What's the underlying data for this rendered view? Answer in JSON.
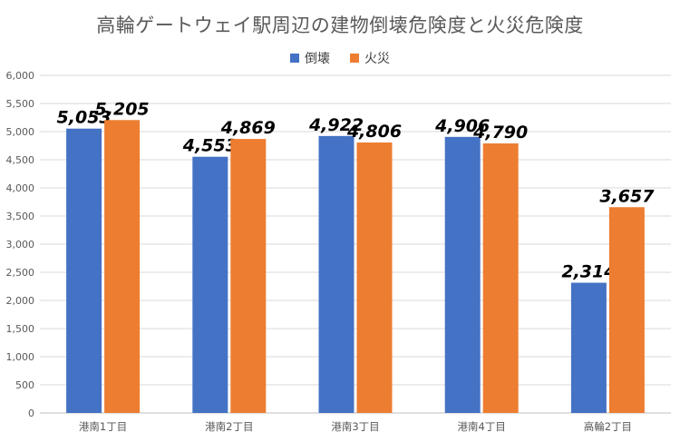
{
  "chart_data": {
    "type": "bar",
    "title": "高輪ゲートウェイ駅周辺の建物倒壊危険度と火災危険度",
    "categories": [
      "港南1丁目",
      "港南2丁目",
      "港南3丁目",
      "港南4丁目",
      "高輪2丁目"
    ],
    "series": [
      {
        "name": "倒壊",
        "values": [
          5053,
          4553,
          4922,
          4906,
          2314
        ],
        "color": "#4472C4"
      },
      {
        "name": "火災",
        "values": [
          5205,
          4869,
          4806,
          4790,
          3657
        ],
        "color": "#ED7D31"
      }
    ],
    "ylim": [
      0,
      6000
    ],
    "ytick_step": 500,
    "yticks": [
      "0",
      "500",
      "1,000",
      "1,500",
      "2,000",
      "2,500",
      "3,000",
      "3,500",
      "4,000",
      "4,500",
      "5,000",
      "5,500",
      "6,000"
    ],
    "data_labels": [
      [
        "5,053",
        "4,553",
        "4,922",
        "4,906",
        "2,314"
      ],
      [
        "5,205",
        "4,869",
        "4,806",
        "4,790",
        "3,657"
      ]
    ],
    "grid": true,
    "legend_position": "top"
  }
}
